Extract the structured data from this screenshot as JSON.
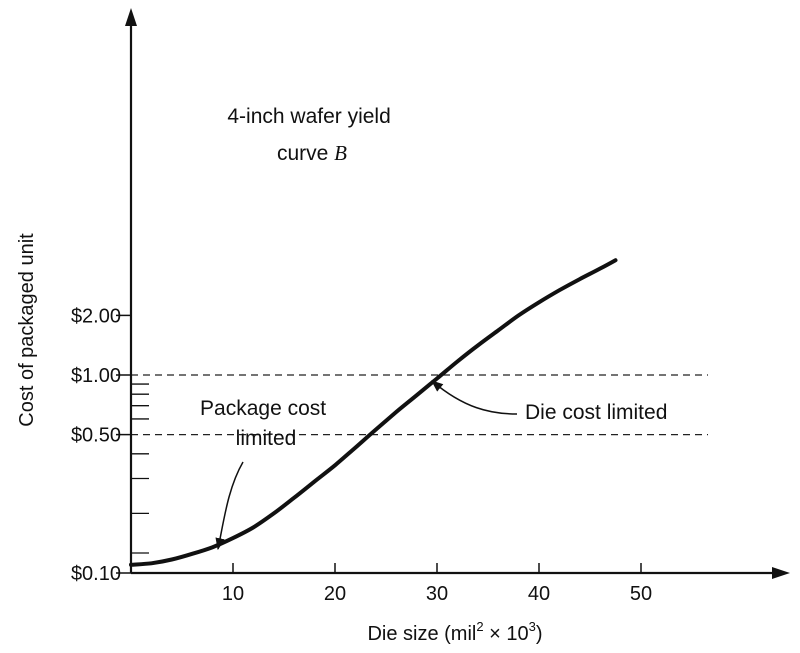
{
  "chart_data": {
    "type": "line",
    "title": "",
    "xlabel": {
      "main": "Die size (mil",
      "sup1": "2",
      "mid": " × 10",
      "sup2": "3",
      "end": ")"
    },
    "ylabel": "Cost of packaged unit",
    "x_ticks": [
      {
        "value": 10,
        "label": "10"
      },
      {
        "value": 20,
        "label": "20"
      },
      {
        "value": 30,
        "label": "30"
      },
      {
        "value": 40,
        "label": "40"
      },
      {
        "value": 50,
        "label": "50"
      }
    ],
    "y_ticks_labeled": [
      {
        "value": 0.1,
        "label": "$0.10"
      },
      {
        "value": 0.5,
        "label": "$0.50"
      },
      {
        "value": 1.0,
        "label": "$1.00"
      },
      {
        "value": 2.0,
        "label": "$2.00"
      }
    ],
    "y_ticks_minor": [
      0.2,
      0.3,
      0.4,
      0.6,
      0.7,
      0.8,
      0.9
    ],
    "y_scale": "log",
    "xlim": [
      0,
      62
    ],
    "ylim": [
      0.1,
      4.2
    ],
    "series": [
      {
        "x": [
          0,
          2,
          4,
          6,
          8,
          10,
          12,
          14,
          16,
          18,
          20,
          22,
          24,
          26,
          28,
          30,
          32,
          34,
          36,
          38,
          40,
          42,
          44,
          46,
          47.5
        ],
        "y": [
          0.11,
          0.112,
          0.117,
          0.125,
          0.135,
          0.15,
          0.17,
          0.2,
          0.24,
          0.29,
          0.35,
          0.43,
          0.53,
          0.65,
          0.79,
          0.96,
          1.17,
          1.41,
          1.68,
          2.0,
          2.33,
          2.68,
          3.05,
          3.45,
          3.8
        ],
        "color": "#111111"
      }
    ],
    "reference_lines": [
      {
        "y": 1.0,
        "style": "dashed"
      },
      {
        "y": 0.5,
        "style": "dashed"
      }
    ],
    "annotations": {
      "curve_label_line1": "4-inch wafer yield",
      "curve_label_line2": "curve ",
      "curve_label_italic": "B",
      "package_label_line1": "Package cost",
      "package_label_line2": "limited",
      "die_label": "Die cost limited"
    }
  }
}
